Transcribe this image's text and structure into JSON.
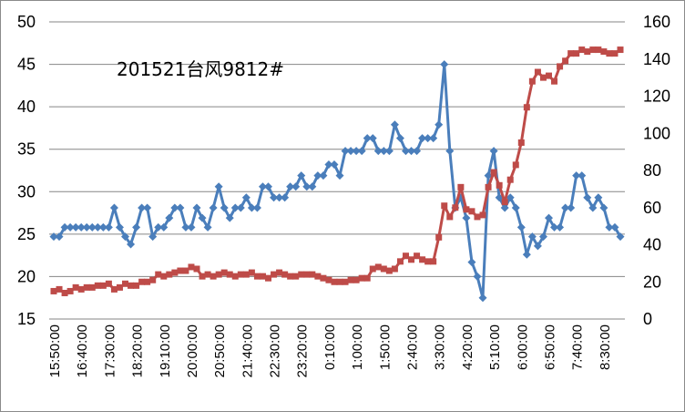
{
  "chart_data": {
    "type": "line",
    "title": "201521台风9812#",
    "x_tick_labels": [
      "15:50:00",
      "16:40:00",
      "17:30:00",
      "18:20:00",
      "19:10:00",
      "20:00:00",
      "20:50:00",
      "21:40:00",
      "22:30:00",
      "23:20:00",
      "0:10:00",
      "1:00:00",
      "1:50:00",
      "2:40:00",
      "3:30:00",
      "4:20:00",
      "5:10:00",
      "6:00:00",
      "6:50:00",
      "7:40:00",
      "8:30:00"
    ],
    "x_tick_step": 5,
    "y_left": {
      "min": 15,
      "max": 50,
      "step": 5,
      "ticks": [
        "15",
        "20",
        "25",
        "30",
        "35",
        "40",
        "45",
        "50"
      ]
    },
    "y_right": {
      "min": 0,
      "max": 160,
      "step": 20,
      "ticks": [
        "0",
        "20",
        "40",
        "60",
        "80",
        "100",
        "120",
        "140",
        "160"
      ]
    },
    "grid": "horizontal",
    "legend": "none",
    "series": [
      {
        "axis": "left",
        "color": "#4a7ebb",
        "marker": "diamond",
        "values": [
          24.7,
          24.7,
          25.8,
          25.8,
          25.8,
          25.8,
          25.8,
          25.8,
          25.8,
          25.8,
          25.8,
          28.1,
          25.8,
          24.7,
          23.8,
          25.8,
          28.1,
          28.1,
          24.7,
          25.8,
          25.8,
          26.9,
          28.1,
          28.1,
          25.8,
          25.8,
          28.1,
          26.9,
          25.8,
          28.1,
          30.6,
          28.1,
          26.9,
          28.1,
          28.1,
          29.3,
          28.1,
          28.1,
          30.6,
          30.6,
          29.3,
          29.3,
          29.3,
          30.6,
          30.6,
          31.9,
          30.6,
          30.6,
          31.9,
          31.9,
          33.2,
          33.2,
          31.9,
          34.8,
          34.8,
          34.8,
          34.8,
          36.3,
          36.3,
          34.8,
          34.8,
          34.8,
          37.9,
          36.3,
          34.8,
          34.8,
          34.8,
          36.3,
          36.3,
          36.3,
          37.9,
          45.0,
          34.8,
          28.1,
          29.3,
          26.9,
          21.7,
          20.0,
          17.5,
          31.9,
          34.8,
          29.3,
          28.1,
          29.3,
          28.1,
          25.8,
          22.6,
          24.7,
          23.6,
          24.7,
          26.9,
          25.8,
          25.8,
          28.1,
          28.1,
          31.9,
          31.9,
          29.3,
          28.1,
          29.3,
          28.1,
          25.8,
          25.8,
          24.7
        ]
      },
      {
        "axis": "right",
        "color": "#be4b48",
        "marker": "square",
        "values": [
          15,
          16,
          14,
          15,
          17,
          16,
          17,
          17,
          18,
          18,
          19,
          16,
          17,
          19,
          18,
          18,
          20,
          20,
          21,
          24,
          23,
          24,
          25,
          26,
          26,
          28,
          27,
          23,
          24,
          23,
          24,
          25,
          24,
          23,
          24,
          24,
          25,
          23,
          23,
          22,
          24,
          25,
          24,
          23,
          23,
          24,
          24,
          24,
          23,
          22,
          21,
          20,
          20,
          20,
          21,
          21,
          22,
          22,
          27,
          28,
          27,
          26,
          27,
          31,
          34,
          32,
          34,
          32,
          31,
          31,
          44,
          61,
          55,
          60,
          71,
          59,
          58,
          55,
          56,
          71,
          79,
          72,
          63,
          75,
          83,
          95,
          114,
          128,
          133,
          130,
          131,
          128,
          136,
          139,
          143,
          143,
          145,
          144,
          145,
          145,
          144,
          143,
          143,
          145
        ]
      }
    ]
  }
}
